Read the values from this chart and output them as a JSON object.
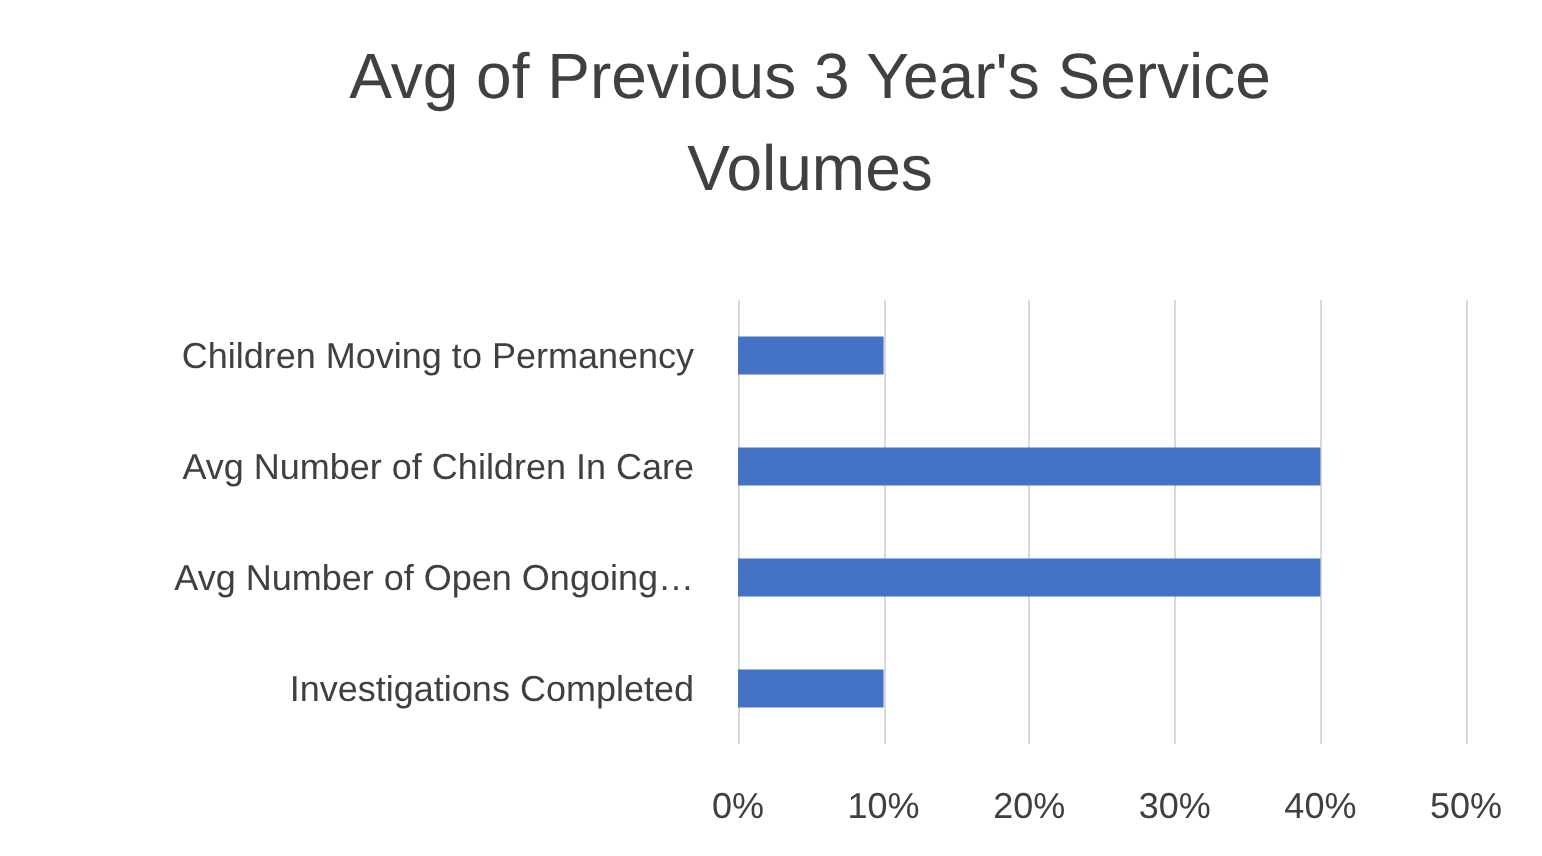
{
  "chart_data": {
    "type": "bar",
    "orientation": "horizontal",
    "title": "Avg of Previous 3 Year's Service\nVolumes",
    "categories": [
      "Children Moving to Permanency",
      "Avg Number of Children In Care",
      "Avg Number of Open Ongoing…",
      "Investigations Completed"
    ],
    "values": [
      10,
      40,
      40,
      10
    ],
    "color": "#4472c4",
    "xlim": [
      0,
      50
    ],
    "xticks": [
      {
        "value": 0,
        "label": "0%"
      },
      {
        "value": 10,
        "label": "10%"
      },
      {
        "value": 20,
        "label": "20%"
      },
      {
        "value": 30,
        "label": "30%"
      },
      {
        "value": 40,
        "label": "40%"
      },
      {
        "value": 50,
        "label": "50%"
      }
    ],
    "grid": "x"
  }
}
